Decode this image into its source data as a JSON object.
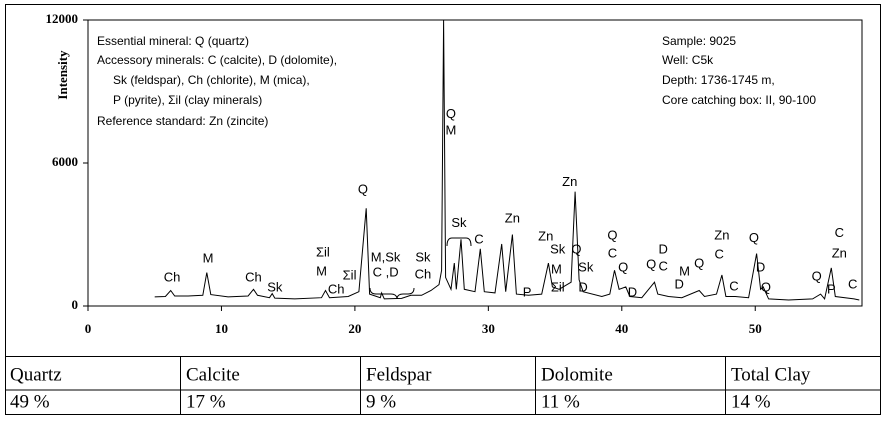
{
  "chart_data": {
    "type": "line",
    "y_label": "Intensity",
    "xlim": [
      0,
      58
    ],
    "ylim": [
      0,
      12000
    ],
    "xticks": [
      0,
      10,
      20,
      30,
      40,
      50
    ],
    "yticks": [
      0,
      6000,
      12000
    ],
    "color": "#000000",
    "x": [
      5,
      5.8,
      6.2,
      6.5,
      7.5,
      8.6,
      8.9,
      9.2,
      10.5,
      12.0,
      12.4,
      12.7,
      13.6,
      13.8,
      14.0,
      15.5,
      17.5,
      17.8,
      18.1,
      19.5,
      20.3,
      20.85,
      21.1,
      21.9,
      22.0,
      22.2,
      23.5,
      24.2,
      25.0,
      25.7,
      26.3,
      26.5,
      26.65,
      26.8,
      27.2,
      27.45,
      27.6,
      27.95,
      28.2,
      29.0,
      29.4,
      29.7,
      30.5,
      31.0,
      31.3,
      31.8,
      32.1,
      33.0,
      34.0,
      34.5,
      34.8,
      35.3,
      36.2,
      36.5,
      36.8,
      37.1,
      38.5,
      39.1,
      39.45,
      39.8,
      40.3,
      40.6,
      41.5,
      42.45,
      42.7,
      43.5,
      44.5,
      45.8,
      46.2,
      47.1,
      47.5,
      47.8,
      48.5,
      49.5,
      50.1,
      50.4,
      50.6,
      51,
      52.5,
      54.3,
      54.9,
      55.2,
      55.7,
      56.0,
      57.4,
      57.8
    ],
    "values": [
      380,
      400,
      650,
      420,
      420,
      450,
      1400,
      480,
      380,
      420,
      700,
      450,
      350,
      520,
      330,
      300,
      350,
      650,
      350,
      400,
      600,
      4100,
      500,
      350,
      550,
      300,
      320,
      450,
      450,
      650,
      900,
      1500,
      12000,
      1200,
      700,
      1800,
      700,
      2800,
      700,
      600,
      2400,
      600,
      550,
      2600,
      600,
      3000,
      500,
      450,
      500,
      1800,
      800,
      700,
      1000,
      4800,
      1100,
      600,
      400,
      500,
      1500,
      700,
      800,
      400,
      350,
      1000,
      500,
      400,
      350,
      650,
      400,
      500,
      1300,
      400,
      400,
      350,
      2200,
      700,
      800,
      300,
      250,
      300,
      500,
      300,
      1600,
      400,
      300,
      250
    ],
    "notes_left": [
      "Essential mineral: Q (quartz)",
      "Accessory minerals: C (calcite), D (dolomite),",
      "Sk (feldspar), Ch (chlorite), M (mica),",
      "P (pyrite), Σil (clay minerals)",
      "Reference standard: Zn (zincite)"
    ],
    "notes_right": [
      "Sample: 9025",
      "Well: C5k",
      "Depth: 1736-1745 m,",
      "Core catching box: II, 90-100"
    ],
    "annotations": [
      {
        "text": "Ch",
        "x": 6.3,
        "y": 1180
      },
      {
        "text": "M",
        "x": 9.0,
        "y": 1970
      },
      {
        "text": "Ch",
        "x": 12.4,
        "y": 1180
      },
      {
        "text": "Sk",
        "x": 14.0,
        "y": 760
      },
      {
        "text": "Σil",
        "x": 17.6,
        "y": 2230
      },
      {
        "text": "M",
        "x": 17.5,
        "y": 1430
      },
      {
        "text": "Ch",
        "x": 18.6,
        "y": 670
      },
      {
        "text": "Σil",
        "x": 19.6,
        "y": 1260
      },
      {
        "text": "Q",
        "x": 20.6,
        "y": 4870
      },
      {
        "text": "M,Sk",
        "x": 22.3,
        "y": 2020
      },
      {
        "text": "C ,D",
        "x": 22.3,
        "y": 1390
      },
      {
        "text": "Sk",
        "x": 25.1,
        "y": 2020
      },
      {
        "text": "Ch",
        "x": 25.1,
        "y": 1300
      },
      {
        "text": "Q",
        "x": 27.2,
        "y": 8030
      },
      {
        "text": "M",
        "x": 27.2,
        "y": 7350
      },
      {
        "text": "Sk",
        "x": 27.8,
        "y": 3450
      },
      {
        "text": "C",
        "x": 29.3,
        "y": 2770
      },
      {
        "text": "Zn",
        "x": 31.8,
        "y": 3650
      },
      {
        "text": "P",
        "x": 32.9,
        "y": 550
      },
      {
        "text": "Zn",
        "x": 34.3,
        "y": 2900
      },
      {
        "text": "Sk",
        "x": 35.2,
        "y": 2350
      },
      {
        "text": "M",
        "x": 35.1,
        "y": 1510
      },
      {
        "text": "Σil",
        "x": 35.2,
        "y": 760
      },
      {
        "text": "Zn",
        "x": 36.1,
        "y": 5170
      },
      {
        "text": "Q",
        "x": 36.6,
        "y": 2350
      },
      {
        "text": "Sk",
        "x": 37.3,
        "y": 1600
      },
      {
        "text": "D",
        "x": 37.1,
        "y": 760
      },
      {
        "text": "Q",
        "x": 39.3,
        "y": 2940
      },
      {
        "text": "C",
        "x": 39.3,
        "y": 2180
      },
      {
        "text": "Q",
        "x": 40.1,
        "y": 1600
      },
      {
        "text": "D",
        "x": 40.8,
        "y": 550
      },
      {
        "text": "Q",
        "x": 42.2,
        "y": 1720
      },
      {
        "text": "D",
        "x": 43.1,
        "y": 2350
      },
      {
        "text": "C",
        "x": 43.1,
        "y": 1640
      },
      {
        "text": "M",
        "x": 44.7,
        "y": 1430
      },
      {
        "text": "D",
        "x": 44.3,
        "y": 880
      },
      {
        "text": "Q",
        "x": 45.8,
        "y": 1760
      },
      {
        "text": "Zn",
        "x": 47.5,
        "y": 2940
      },
      {
        "text": "C",
        "x": 47.3,
        "y": 2140
      },
      {
        "text": "C",
        "x": 48.4,
        "y": 800
      },
      {
        "text": "Q",
        "x": 49.9,
        "y": 2820
      },
      {
        "text": "D",
        "x": 50.4,
        "y": 1600
      },
      {
        "text": "Q",
        "x": 50.8,
        "y": 760
      },
      {
        "text": "Q",
        "x": 54.6,
        "y": 1220
      },
      {
        "text": "P",
        "x": 55.7,
        "y": 670
      },
      {
        "text": "C",
        "x": 56.3,
        "y": 3030
      },
      {
        "text": "Zn",
        "x": 56.3,
        "y": 2180
      },
      {
        "text": "C",
        "x": 57.3,
        "y": 880
      }
    ]
  },
  "table": {
    "columns": [
      "Quartz",
      "Calcite",
      "Feldspar",
      "Dolomite",
      "Total Clay"
    ],
    "values": [
      "49 %",
      "17 %",
      "9 %",
      "11 %",
      "14 %"
    ]
  }
}
